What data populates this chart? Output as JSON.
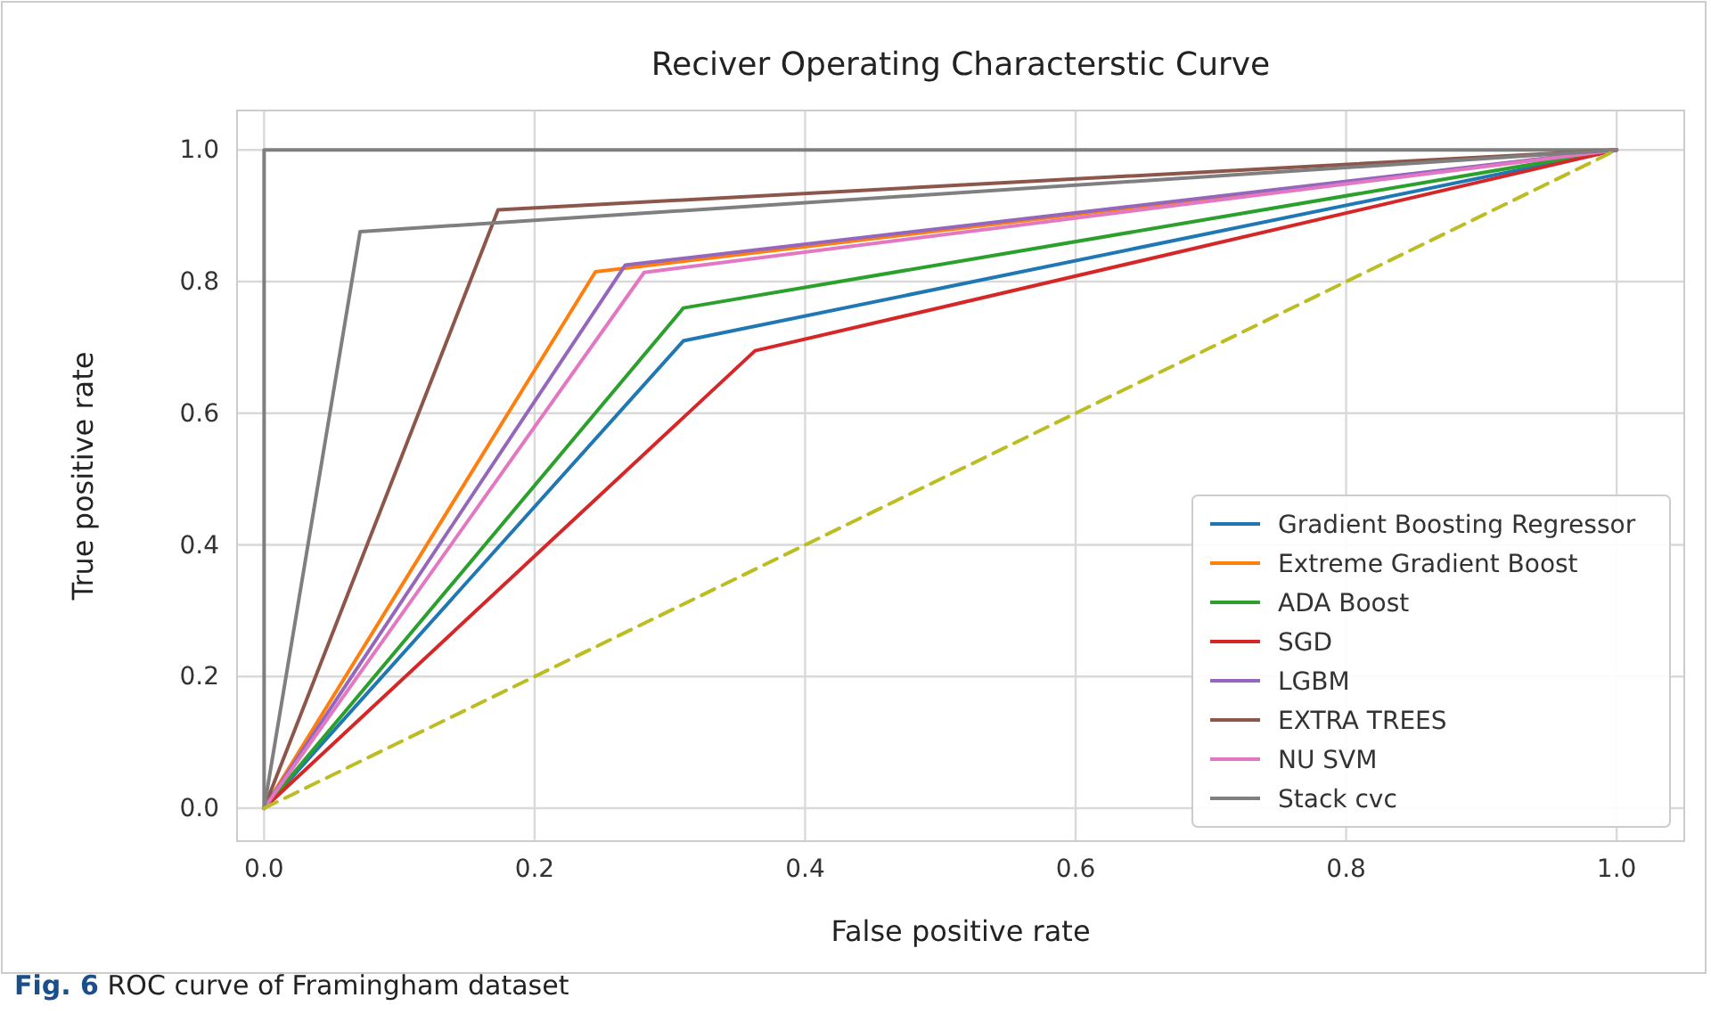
{
  "chart_data": {
    "type": "line",
    "title": "Reciver Operating Characterstic Curve",
    "xlabel": "False positive rate",
    "ylabel": "True positive rate",
    "xlim": [
      -0.02,
      1.05
    ],
    "ylim": [
      -0.05,
      1.06
    ],
    "xticks": [
      {
        "value": 0,
        "label": "0.0"
      },
      0.2,
      0.4,
      0.6,
      0.8,
      {
        "value": 1,
        "label": "1.0"
      }
    ],
    "yticks": [
      {
        "value": 0,
        "label": "0.0"
      },
      0.2,
      0.4,
      0.6,
      0.8,
      {
        "value": 1,
        "label": "1.0"
      }
    ],
    "grid": true,
    "legend": "bottom right",
    "marker": "none",
    "line_style": "solid",
    "annotations": [
      "Fig. 6 ROC curve of Framingham dataset"
    ],
    "series": [
      {
        "x": [
          0,
          0,
          1
        ],
        "values": [
          0,
          1,
          1
        ],
        "color": "#7f7f7f"
      },
      {
        "name": "Gradient Boosting Regressor",
        "x": [
          0,
          0.31,
          1
        ],
        "values": [
          0,
          0.71,
          1
        ],
        "color": "#1f77b4"
      },
      {
        "name": "Extreme Gradient Boost",
        "x": [
          0,
          0.245,
          1
        ],
        "values": [
          0,
          0.815,
          1
        ],
        "color": "#ff7f0e"
      },
      {
        "name": "ADA Boost",
        "x": [
          0,
          0.31,
          1
        ],
        "values": [
          0,
          0.76,
          1
        ],
        "color": "#2ca02c"
      },
      {
        "name": "SGD",
        "x": [
          0,
          0.363,
          1
        ],
        "values": [
          0,
          0.695,
          1
        ],
        "color": "#d62728"
      },
      {
        "name": "LGBM",
        "x": [
          0,
          0.267,
          1
        ],
        "values": [
          0,
          0.825,
          1
        ],
        "color": "#9467bd"
      },
      {
        "name": "EXTRA TREES",
        "x": [
          0,
          0.173,
          1
        ],
        "values": [
          0,
          0.909,
          1
        ],
        "color": "#8c564b"
      },
      {
        "name": "NU SVM",
        "x": [
          0,
          0.281,
          1
        ],
        "values": [
          0,
          0.814,
          1
        ],
        "color": "#e377c2"
      },
      {
        "name": "Stack cvc",
        "x": [
          0,
          0.071,
          1
        ],
        "values": [
          0,
          0.876,
          1
        ],
        "color": "#7f7f7f"
      },
      {
        "x": [
          0,
          1
        ],
        "values": [
          0,
          1
        ],
        "color": "#bcbd22",
        "line_style": "dashed"
      }
    ]
  }
}
